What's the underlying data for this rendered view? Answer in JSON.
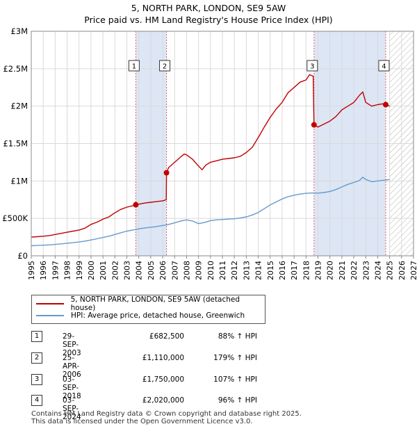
{
  "title": {
    "line1": "5, NORTH PARK, LONDON, SE9 5AW",
    "line2": "Price paid vs. HM Land Registry's House Price Index (HPI)"
  },
  "colors": {
    "property": "#c00000",
    "hpi": "#6699cc",
    "shade": "#dde6f5",
    "future_hatch": "#aaaaaa"
  },
  "chart_data": {
    "type": "line",
    "xlabel": "",
    "ylabel": "",
    "xlim": [
      1995,
      2027
    ],
    "ylim": [
      0,
      3000000
    ],
    "grid": true,
    "x_ticks": [
      "1995",
      "1996",
      "1997",
      "1998",
      "1999",
      "2000",
      "2001",
      "2002",
      "2003",
      "2004",
      "2005",
      "2006",
      "2007",
      "2008",
      "2009",
      "2010",
      "2011",
      "2012",
      "2013",
      "2014",
      "2015",
      "2016",
      "2017",
      "2018",
      "2019",
      "2020",
      "2021",
      "2022",
      "2023",
      "2024",
      "2025",
      "2026",
      "2027"
    ],
    "y_ticks": [
      {
        "value": 0,
        "label": "£0"
      },
      {
        "value": 500000,
        "label": "£500K"
      },
      {
        "value": 1000000,
        "label": "£1M"
      },
      {
        "value": 1500000,
        "label": "£1.5M"
      },
      {
        "value": 2000000,
        "label": "£2M"
      },
      {
        "value": 2500000,
        "label": "£2.5M"
      },
      {
        "value": 3000000,
        "label": "£3M"
      }
    ],
    "shaded_periods": [
      [
        2003.75,
        2006.32
      ],
      [
        2018.67,
        2024.67
      ]
    ],
    "future_from": 2025.0,
    "series": [
      {
        "name": "5, NORTH PARK, LONDON, SE9 5AW (detached house)",
        "color": "#c00000",
        "x": [
          1995.0,
          1995.5,
          1996.0,
          1996.5,
          1997.0,
          1997.5,
          1998.0,
          1998.5,
          1999.0,
          1999.5,
          2000.0,
          2000.5,
          2001.0,
          2001.5,
          2002.0,
          2002.5,
          2003.0,
          2003.5,
          2003.75,
          2004.0,
          2004.5,
          2005.0,
          2005.5,
          2006.0,
          2006.3,
          2006.32,
          2006.5,
          2007.0,
          2007.5,
          2007.8,
          2008.0,
          2008.5,
          2009.0,
          2009.3,
          2009.6,
          2010.0,
          2010.5,
          2011.0,
          2011.5,
          2012.0,
          2012.5,
          2013.0,
          2013.5,
          2014.0,
          2014.5,
          2015.0,
          2015.5,
          2016.0,
          2016.5,
          2017.0,
          2017.5,
          2018.0,
          2018.3,
          2018.6,
          2018.67,
          2019.0,
          2019.5,
          2020.0,
          2020.5,
          2021.0,
          2021.5,
          2022.0,
          2022.5,
          2022.75,
          2023.0,
          2023.5,
          2024.0,
          2024.4,
          2024.67,
          2025.0
        ],
        "values": [
          250000,
          255000,
          262000,
          270000,
          285000,
          300000,
          315000,
          330000,
          345000,
          370000,
          420000,
          450000,
          490000,
          520000,
          575000,
          620000,
          650000,
          670000,
          682500,
          690000,
          705000,
          715000,
          725000,
          735000,
          750000,
          1110000,
          1180000,
          1250000,
          1320000,
          1360000,
          1350000,
          1290000,
          1200000,
          1150000,
          1210000,
          1250000,
          1270000,
          1290000,
          1300000,
          1310000,
          1330000,
          1380000,
          1450000,
          1580000,
          1720000,
          1850000,
          1960000,
          2050000,
          2180000,
          2250000,
          2320000,
          2350000,
          2420000,
          2400000,
          1750000,
          1720000,
          1760000,
          1800000,
          1860000,
          1950000,
          2000000,
          2050000,
          2150000,
          2190000,
          2050000,
          2000000,
          2020000,
          2030000,
          2020000,
          2000000
        ]
      },
      {
        "name": "HPI: Average price, detached house, Greenwich",
        "color": "#6699cc",
        "x": [
          1995.0,
          1995.5,
          1996.0,
          1996.5,
          1997.0,
          1997.5,
          1998.0,
          1998.5,
          1999.0,
          1999.5,
          2000.0,
          2000.5,
          2001.0,
          2001.5,
          2002.0,
          2002.5,
          2003.0,
          2003.5,
          2004.0,
          2004.5,
          2005.0,
          2005.5,
          2006.0,
          2006.5,
          2007.0,
          2007.5,
          2008.0,
          2008.5,
          2009.0,
          2009.5,
          2010.0,
          2010.5,
          2011.0,
          2011.5,
          2012.0,
          2012.5,
          2013.0,
          2013.5,
          2014.0,
          2014.5,
          2015.0,
          2015.5,
          2016.0,
          2016.5,
          2017.0,
          2017.5,
          2018.0,
          2018.5,
          2019.0,
          2019.5,
          2020.0,
          2020.5,
          2021.0,
          2021.5,
          2022.0,
          2022.5,
          2022.75,
          2023.0,
          2023.5,
          2024.0,
          2024.5,
          2025.0
        ],
        "values": [
          135000,
          138000,
          142000,
          146000,
          152000,
          160000,
          168000,
          176000,
          185000,
          197000,
          212000,
          228000,
          245000,
          262000,
          285000,
          308000,
          330000,
          345000,
          360000,
          372000,
          382000,
          392000,
          405000,
          420000,
          440000,
          465000,
          480000,
          465000,
          430000,
          445000,
          470000,
          480000,
          485000,
          490000,
          495000,
          505000,
          520000,
          545000,
          580000,
          630000,
          680000,
          720000,
          760000,
          790000,
          810000,
          825000,
          835000,
          840000,
          838000,
          845000,
          860000,
          885000,
          920000,
          955000,
          980000,
          1010000,
          1050000,
          1020000,
          990000,
          1000000,
          1010000,
          1020000
        ]
      }
    ],
    "markers": [
      {
        "label": "1",
        "x": 2003.75,
        "value": 682500
      },
      {
        "label": "2",
        "x": 2006.32,
        "value": 1110000
      },
      {
        "label": "3",
        "x": 2018.67,
        "value": 1750000
      },
      {
        "label": "4",
        "x": 2024.67,
        "value": 2020000
      }
    ]
  },
  "legend": {
    "property_label": "5, NORTH PARK, LONDON, SE9 5AW (detached house)",
    "hpi_label": "HPI: Average price, detached house, Greenwich"
  },
  "transactions": [
    {
      "num": "1",
      "date": "29-SEP-2003",
      "price": "£682,500",
      "hpi": "88% ↑ HPI"
    },
    {
      "num": "2",
      "date": "25-APR-2006",
      "price": "£1,110,000",
      "hpi": "179% ↑ HPI"
    },
    {
      "num": "3",
      "date": "03-SEP-2018",
      "price": "£1,750,000",
      "hpi": "107% ↑ HPI"
    },
    {
      "num": "4",
      "date": "03-SEP-2024",
      "price": "£2,020,000",
      "hpi": "96% ↑ HPI"
    }
  ],
  "footer": {
    "line1": "Contains HM Land Registry data © Crown copyright and database right 2025.",
    "line2": "This data is licensed under the Open Government Licence v3.0."
  }
}
